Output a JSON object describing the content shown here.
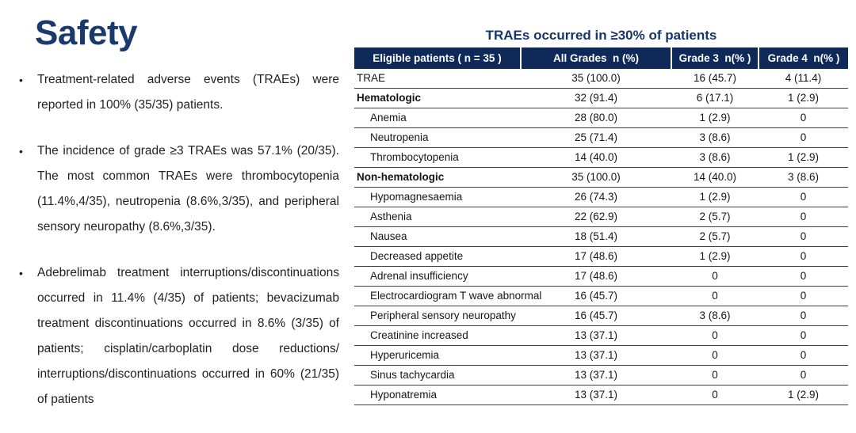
{
  "left": {
    "title": "Safety",
    "bullet_char": "•",
    "bullets": [
      "Treatment-related adverse events (TRAEs) were reported in 100% (35/35) patients.",
      "The incidence of grade ≥3 TRAEs was 57.1% (20/35). The most common TRAEs were thrombocytopenia (11.4%,4/35), neutropenia (8.6%,3/35), and peripheral sensory neuropathy (8.6%,3/35).",
      "Adebrelimab treatment interruptions/discontinuations occurred in 11.4% (4/35) of patients; bevacizumab treatment discontinuations occurred in 8.6% (3/35) of patients; cisplatin/carboplatin dose reductions/ interruptions/discontinuations occurred in 60% (21/35) of patients"
    ]
  },
  "table": {
    "title": "TRAEs occurred in ≥30% of patients",
    "columns": [
      "Eligible patients ( n = 35 )",
      "All Grades  n (%)",
      "Grade 3  n(% )",
      "Grade 4  n(% )"
    ],
    "rows": [
      {
        "label": "TRAE",
        "kind": "summary",
        "all": "35 (100.0)",
        "g3": "16 (45.7)",
        "g4": "4 (11.4)"
      },
      {
        "label": "Hematologic",
        "kind": "category",
        "all": "32 (91.4)",
        "g3": "6 (17.1)",
        "g4": "1 (2.9)"
      },
      {
        "label": "Anemia",
        "kind": "item",
        "all": "28 (80.0)",
        "g3": "1 (2.9)",
        "g4": "0"
      },
      {
        "label": "Neutropenia",
        "kind": "item",
        "all": "25 (71.4)",
        "g3": "3 (8.6)",
        "g4": "0"
      },
      {
        "label": "Thrombocytopenia",
        "kind": "item",
        "all": "14 (40.0)",
        "g3": "3 (8.6)",
        "g4": "1 (2.9)"
      },
      {
        "label": "Non-hematologic",
        "kind": "category",
        "all": "35 (100.0)",
        "g3": "14 (40.0)",
        "g4": "3 (8.6)"
      },
      {
        "label": "Hypomagnesaemia",
        "kind": "item",
        "all": "26 (74.3)",
        "g3": "1 (2.9)",
        "g4": "0"
      },
      {
        "label": "Asthenia",
        "kind": "item",
        "all": "22 (62.9)",
        "g3": "2 (5.7)",
        "g4": "0"
      },
      {
        "label": "Nausea",
        "kind": "item",
        "all": "18 (51.4)",
        "g3": "2 (5.7)",
        "g4": "0"
      },
      {
        "label": "Decreased appetite",
        "kind": "item",
        "all": "17 (48.6)",
        "g3": "1 (2.9)",
        "g4": "0"
      },
      {
        "label": "Adrenal insufficiency",
        "kind": "item",
        "all": "17 (48.6)",
        "g3": "0",
        "g4": "0"
      },
      {
        "label": "Electrocardiogram T wave abnormal",
        "kind": "item",
        "all": "16 (45.7)",
        "g3": "0",
        "g4": "0"
      },
      {
        "label": "Peripheral sensory neuropathy",
        "kind": "item",
        "all": "16 (45.7)",
        "g3": "3 (8.6)",
        "g4": "0"
      },
      {
        "label": "Creatinine increased",
        "kind": "item",
        "all": "13 (37.1)",
        "g3": "0",
        "g4": "0"
      },
      {
        "label": "Hyperuricemia",
        "kind": "item",
        "all": "13 (37.1)",
        "g3": "0",
        "g4": "0"
      },
      {
        "label": "Sinus tachycardia",
        "kind": "item",
        "all": "13 (37.1)",
        "g3": "0",
        "g4": "0"
      },
      {
        "label": "Hyponatremia",
        "kind": "item",
        "all": "13 (37.1)",
        "g3": "0",
        "g4": "1 (2.9)"
      }
    ],
    "colors": {
      "header_bg": "#0f2958",
      "header_text": "#ffffff",
      "accent_navy": "#1b3a6c",
      "row_border": "#3f3f3f"
    }
  }
}
